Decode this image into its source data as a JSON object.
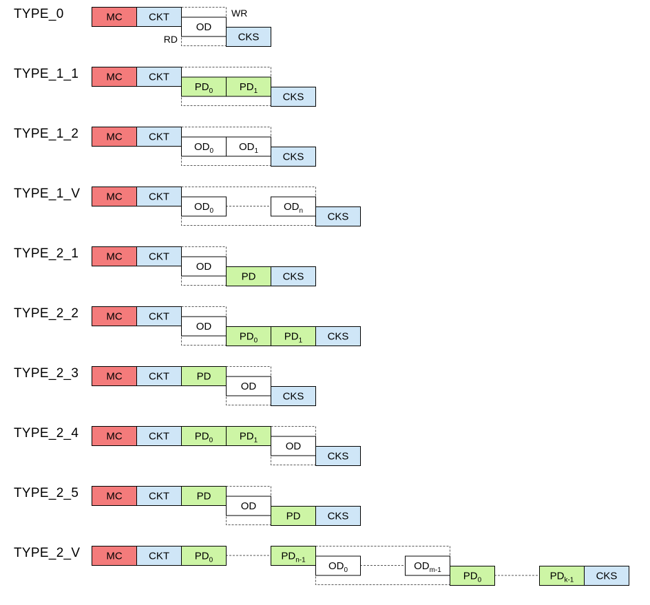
{
  "colors": {
    "MC": "#f47b7b",
    "CKT": "#cfe6f7",
    "CKS": "#cfe6f7",
    "PD": "#cdf5a5",
    "OD": "#ffffff"
  },
  "annotations": {
    "wr": "WR",
    "rd": "RD"
  },
  "rows": [
    {
      "label": "TYPE_0",
      "blocks": [
        {
          "col": 0,
          "lvl": 0,
          "kind": "MC",
          "text": "MC"
        },
        {
          "col": 1,
          "lvl": 0,
          "kind": "CKT",
          "text": "CKT"
        },
        {
          "col": 2,
          "lvl": 1,
          "kind": "OD",
          "text": "OD"
        },
        {
          "col": 3,
          "lvl": 2,
          "kind": "CKS",
          "text": "CKS"
        }
      ],
      "dashedBox": [
        2,
        3
      ],
      "dashLinks": [],
      "wrRd": true
    },
    {
      "label": "TYPE_1_1",
      "blocks": [
        {
          "col": 0,
          "lvl": 0,
          "kind": "MC",
          "text": "MC"
        },
        {
          "col": 1,
          "lvl": 0,
          "kind": "CKT",
          "text": "CKT"
        },
        {
          "col": 2,
          "lvl": 1,
          "kind": "PD",
          "text": "PD",
          "sub": "0"
        },
        {
          "col": 3,
          "lvl": 1,
          "kind": "PD",
          "text": "PD",
          "sub": "1"
        },
        {
          "col": 4,
          "lvl": 2,
          "kind": "CKS",
          "text": "CKS"
        }
      ],
      "dashedBox": [
        2,
        4
      ],
      "dashLinks": []
    },
    {
      "label": "TYPE_1_2",
      "blocks": [
        {
          "col": 0,
          "lvl": 0,
          "kind": "MC",
          "text": "MC"
        },
        {
          "col": 1,
          "lvl": 0,
          "kind": "CKT",
          "text": "CKT"
        },
        {
          "col": 2,
          "lvl": 1,
          "kind": "OD",
          "text": "OD",
          "sub": "0"
        },
        {
          "col": 3,
          "lvl": 1,
          "kind": "OD",
          "text": "OD",
          "sub": "1"
        },
        {
          "col": 4,
          "lvl": 2,
          "kind": "CKS",
          "text": "CKS"
        }
      ],
      "dashedBox": [
        2,
        4
      ],
      "dashLinks": []
    },
    {
      "label": "TYPE_1_V",
      "blocks": [
        {
          "col": 0,
          "lvl": 0,
          "kind": "MC",
          "text": "MC"
        },
        {
          "col": 1,
          "lvl": 0,
          "kind": "CKT",
          "text": "CKT"
        },
        {
          "col": 2,
          "lvl": 1,
          "kind": "OD",
          "text": "OD",
          "sub": "0"
        },
        {
          "col": 4,
          "lvl": 1,
          "kind": "OD",
          "text": "OD",
          "sub": "n"
        },
        {
          "col": 5,
          "lvl": 2,
          "kind": "CKS",
          "text": "CKS"
        }
      ],
      "dashedBox": [
        2,
        5
      ],
      "dashLinks": [
        {
          "from": 3,
          "to": 4,
          "lvl": 1
        }
      ]
    },
    {
      "label": "TYPE_2_1",
      "blocks": [
        {
          "col": 0,
          "lvl": 0,
          "kind": "MC",
          "text": "MC"
        },
        {
          "col": 1,
          "lvl": 0,
          "kind": "CKT",
          "text": "CKT"
        },
        {
          "col": 2,
          "lvl": 1,
          "kind": "OD",
          "text": "OD"
        },
        {
          "col": 3,
          "lvl": 2,
          "kind": "PD",
          "text": "PD"
        },
        {
          "col": 4,
          "lvl": 2,
          "kind": "CKS",
          "text": "CKS"
        }
      ],
      "dashedBox": [
        2,
        3
      ],
      "dashLinks": []
    },
    {
      "label": "TYPE_2_2",
      "blocks": [
        {
          "col": 0,
          "lvl": 0,
          "kind": "MC",
          "text": "MC"
        },
        {
          "col": 1,
          "lvl": 0,
          "kind": "CKT",
          "text": "CKT"
        },
        {
          "col": 2,
          "lvl": 1,
          "kind": "OD",
          "text": "OD"
        },
        {
          "col": 3,
          "lvl": 2,
          "kind": "PD",
          "text": "PD",
          "sub": "0"
        },
        {
          "col": 4,
          "lvl": 2,
          "kind": "PD",
          "text": "PD",
          "sub": "1"
        },
        {
          "col": 5,
          "lvl": 2,
          "kind": "CKS",
          "text": "CKS"
        }
      ],
      "dashedBox": [
        2,
        3
      ],
      "dashLinks": []
    },
    {
      "label": "TYPE_2_3",
      "blocks": [
        {
          "col": 0,
          "lvl": 0,
          "kind": "MC",
          "text": "MC"
        },
        {
          "col": 1,
          "lvl": 0,
          "kind": "CKT",
          "text": "CKT"
        },
        {
          "col": 2,
          "lvl": 0,
          "kind": "PD",
          "text": "PD"
        },
        {
          "col": 3,
          "lvl": 1,
          "kind": "OD",
          "text": "OD"
        },
        {
          "col": 4,
          "lvl": 2,
          "kind": "CKS",
          "text": "CKS"
        }
      ],
      "dashedBox": [
        3,
        4
      ],
      "dashLinks": []
    },
    {
      "label": "TYPE_2_4",
      "blocks": [
        {
          "col": 0,
          "lvl": 0,
          "kind": "MC",
          "text": "MC"
        },
        {
          "col": 1,
          "lvl": 0,
          "kind": "CKT",
          "text": "CKT"
        },
        {
          "col": 2,
          "lvl": 0,
          "kind": "PD",
          "text": "PD",
          "sub": "0"
        },
        {
          "col": 3,
          "lvl": 0,
          "kind": "PD",
          "text": "PD",
          "sub": "1"
        },
        {
          "col": 4,
          "lvl": 1,
          "kind": "OD",
          "text": "OD"
        },
        {
          "col": 5,
          "lvl": 2,
          "kind": "CKS",
          "text": "CKS"
        }
      ],
      "dashedBox": [
        4,
        5
      ],
      "dashLinks": []
    },
    {
      "label": "TYPE_2_5",
      "blocks": [
        {
          "col": 0,
          "lvl": 0,
          "kind": "MC",
          "text": "MC"
        },
        {
          "col": 1,
          "lvl": 0,
          "kind": "CKT",
          "text": "CKT"
        },
        {
          "col": 2,
          "lvl": 0,
          "kind": "PD",
          "text": "PD"
        },
        {
          "col": 3,
          "lvl": 1,
          "kind": "OD",
          "text": "OD"
        },
        {
          "col": 4,
          "lvl": 2,
          "kind": "PD",
          "text": "PD"
        },
        {
          "col": 5,
          "lvl": 2,
          "kind": "CKS",
          "text": "CKS"
        }
      ],
      "dashedBox": [
        3,
        4
      ],
      "dashLinks": []
    },
    {
      "label": "TYPE_2_V",
      "blocks": [
        {
          "col": 0,
          "lvl": 0,
          "kind": "MC",
          "text": "MC"
        },
        {
          "col": 1,
          "lvl": 0,
          "kind": "CKT",
          "text": "CKT"
        },
        {
          "col": 2,
          "lvl": 0,
          "kind": "PD",
          "text": "PD",
          "sub": "0"
        },
        {
          "col": 4,
          "lvl": 0,
          "kind": "PD",
          "text": "PD",
          "sub": "n-1"
        },
        {
          "col": 5,
          "lvl": 1,
          "kind": "OD",
          "text": "OD",
          "sub": "0"
        },
        {
          "col": 7,
          "lvl": 1,
          "kind": "OD",
          "text": "OD",
          "sub": "m-1"
        },
        {
          "col": 8,
          "lvl": 2,
          "kind": "PD",
          "text": "PD",
          "sub": "0"
        },
        {
          "col": 10,
          "lvl": 2,
          "kind": "PD",
          "text": "PD",
          "sub": "k-1"
        },
        {
          "col": 11,
          "lvl": 2,
          "kind": "CKS",
          "text": "CKS"
        }
      ],
      "dashedBox": [
        5,
        8
      ],
      "dashLinks": [
        {
          "from": 3,
          "to": 4,
          "lvl": 0
        },
        {
          "from": 6,
          "to": 7,
          "lvl": 1
        },
        {
          "from": 9,
          "to": 10,
          "lvl": 2
        }
      ]
    }
  ]
}
